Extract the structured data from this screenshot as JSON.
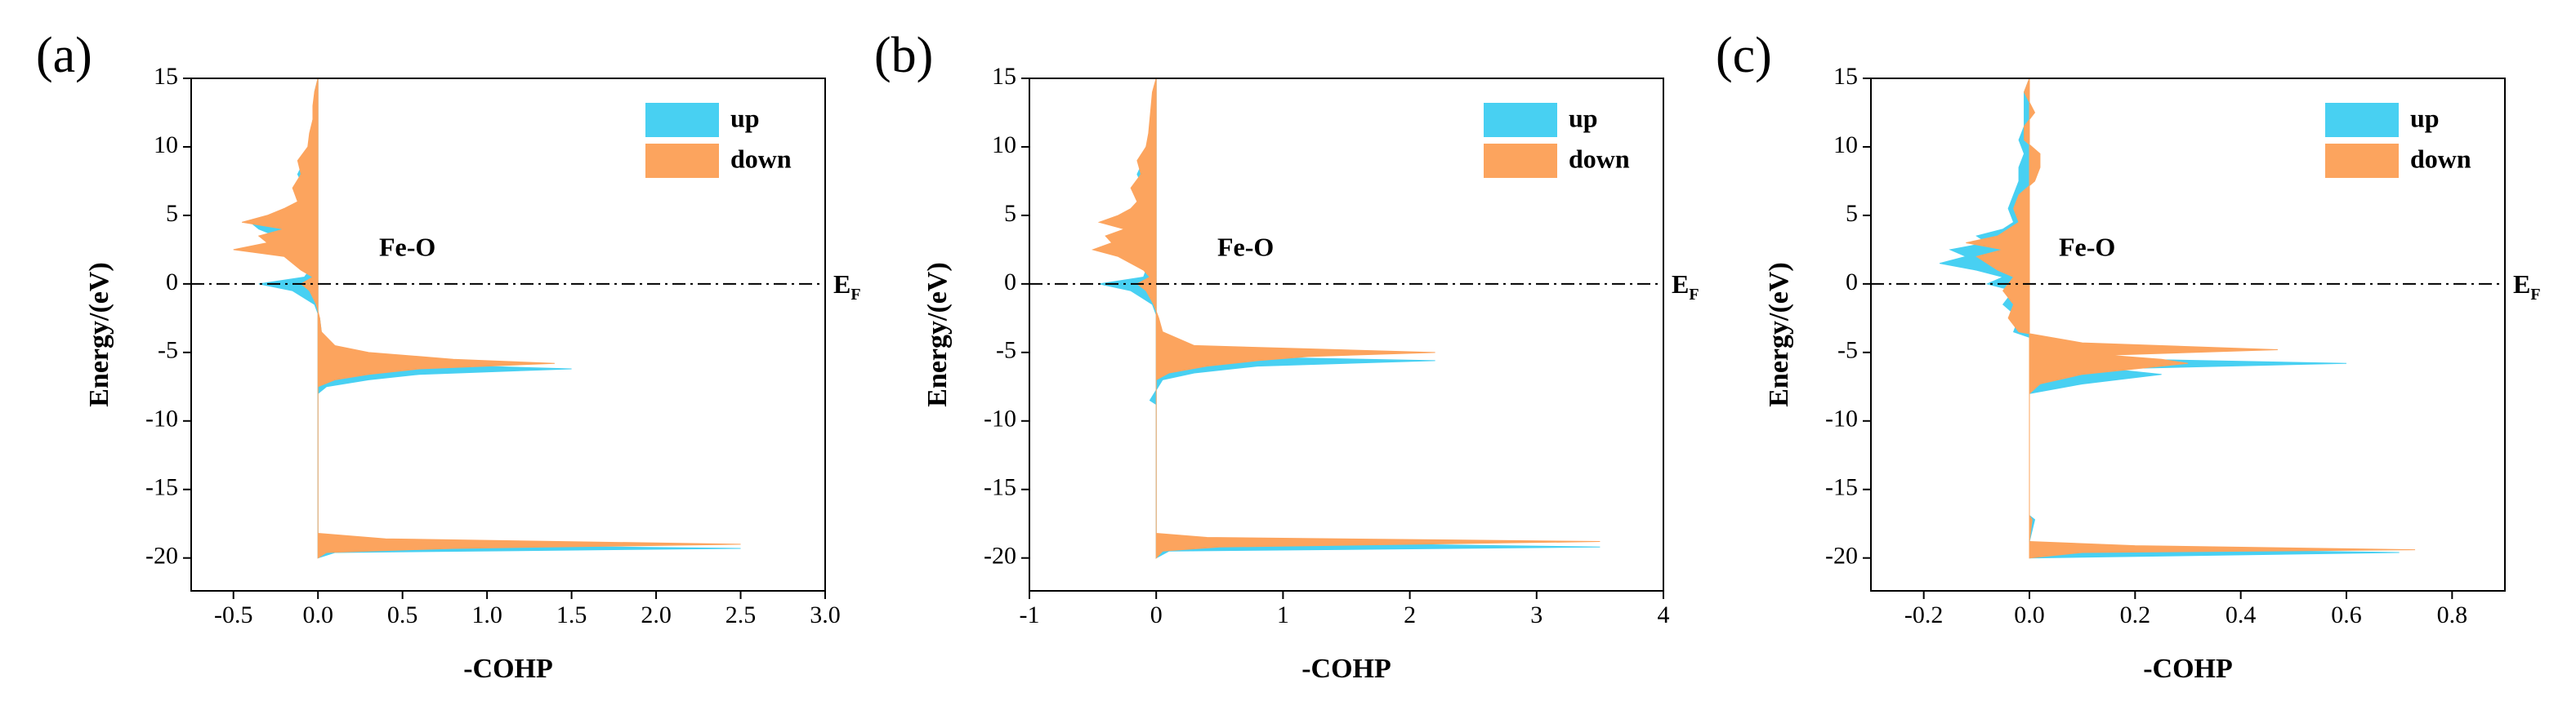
{
  "chart_data": [
    {
      "type": "area",
      "panel_label": "(a)",
      "annotation": "Fe-O",
      "fermi_label": {
        "text": "E",
        "subscript": "F"
      },
      "hline": 0,
      "x_label": "-COHP",
      "y_label": "Energy/(eV)",
      "xlim": [
        -0.75,
        3.0
      ],
      "xticks": [
        -0.5,
        {
          "value": 0,
          "label": "0.0"
        },
        0.5,
        {
          "value": 1,
          "label": "1.0"
        },
        1.5,
        {
          "value": 2,
          "label": "2.0"
        },
        2.5,
        {
          "value": 3,
          "label": "3.0"
        }
      ],
      "ylim": [
        -22.4,
        15
      ],
      "yticks": [
        -20,
        -15,
        -10,
        -5,
        0,
        5,
        10,
        15
      ],
      "y": [
        -20,
        -19.6,
        -19.3,
        -19.0,
        -18.6,
        -18.2,
        -8,
        -7.5,
        -7.0,
        -6.6,
        -6.2,
        -5.8,
        -5.5,
        -5.0,
        -4.5,
        -3.5,
        -2.5,
        -1.5,
        -0.5,
        0,
        0.5,
        1.0,
        2.0,
        2.5,
        3.0,
        3.5,
        4.0,
        4.5,
        5.0,
        5.5,
        6.0,
        7.0,
        8.0,
        9.0,
        10.0,
        11.0,
        12.0,
        13.0,
        14.0,
        15.0
      ],
      "series": [
        {
          "name": "up",
          "color": "#48d0f2",
          "values": [
            0,
            0.1,
            2.5,
            0.3,
            0,
            0,
            0,
            0.05,
            0.3,
            0.6,
            1.5,
            0.4,
            0.2,
            0.1,
            0.05,
            0.02,
            0.01,
            -0.02,
            -0.15,
            -0.35,
            -0.08,
            -0.05,
            -0.1,
            -0.2,
            -0.3,
            -0.25,
            -0.35,
            -0.4,
            -0.2,
            -0.15,
            -0.1,
            -0.08,
            -0.12,
            -0.08,
            -0.05,
            -0.04,
            -0.03,
            -0.02,
            -0.02,
            0
          ]
        },
        {
          "name": "down",
          "color": "#fca45e",
          "values": [
            0,
            0.05,
            0.8,
            2.5,
            0.4,
            0,
            0,
            0,
            0.1,
            0.3,
            0.6,
            1.4,
            0.8,
            0.3,
            0.1,
            0.02,
            0.01,
            -0.01,
            -0.05,
            -0.1,
            -0.03,
            -0.1,
            -0.2,
            -0.5,
            -0.3,
            -0.35,
            -0.2,
            -0.45,
            -0.3,
            -0.2,
            -0.12,
            -0.15,
            -0.1,
            -0.12,
            -0.06,
            -0.05,
            -0.03,
            -0.03,
            -0.02,
            0
          ]
        }
      ]
    },
    {
      "type": "area",
      "panel_label": "(b)",
      "annotation": "Fe-O",
      "fermi_label": {
        "text": "E",
        "subscript": "F"
      },
      "hline": 0,
      "x_label": "-COHP",
      "y_label": "Energy/(eV)",
      "xlim": [
        -1,
        4
      ],
      "xticks": [
        -1,
        0,
        1,
        2,
        3,
        4
      ],
      "ylim": [
        -22.4,
        15
      ],
      "yticks": [
        -20,
        -15,
        -10,
        -5,
        0,
        5,
        10,
        15
      ],
      "y": [
        -20,
        -19.5,
        -19.2,
        -18.8,
        -18.5,
        -18.2,
        -8.8,
        -8.5,
        -7.0,
        -6.5,
        -6.0,
        -5.6,
        -5.3,
        -5.0,
        -4.5,
        -3.5,
        -2.5,
        -1.5,
        -0.5,
        0,
        0.5,
        1.0,
        2.0,
        2.5,
        3.0,
        3.5,
        4.0,
        4.5,
        5.0,
        5.5,
        6.0,
        7.0,
        8.0,
        9.0,
        10.0,
        11.0,
        12.0,
        13.0,
        14.0,
        15.0
      ],
      "series": [
        {
          "name": "up",
          "color": "#48d0f2",
          "values": [
            0,
            0.1,
            3.5,
            0.3,
            0,
            0,
            0,
            -0.05,
            0.05,
            0.3,
            0.8,
            2.2,
            0.5,
            0.2,
            0.08,
            0.03,
            0.01,
            -0.03,
            -0.2,
            -0.45,
            -0.1,
            -0.08,
            -0.2,
            -0.3,
            -0.25,
            -0.3,
            -0.2,
            -0.35,
            -0.2,
            -0.15,
            -0.1,
            -0.1,
            -0.15,
            -0.1,
            -0.08,
            -0.05,
            -0.04,
            -0.03,
            -0.02,
            0
          ]
        },
        {
          "name": "down",
          "color": "#fca45e",
          "values": [
            0,
            0.05,
            0.5,
            3.5,
            0.4,
            0,
            0,
            0,
            0,
            0.1,
            0.4,
            0.8,
            1.2,
            2.2,
            0.3,
            0.05,
            0.02,
            -0.02,
            -0.08,
            -0.15,
            -0.05,
            -0.1,
            -0.3,
            -0.5,
            -0.35,
            -0.4,
            -0.25,
            -0.45,
            -0.3,
            -0.2,
            -0.15,
            -0.2,
            -0.12,
            -0.15,
            -0.08,
            -0.06,
            -0.05,
            -0.04,
            -0.03,
            0
          ]
        }
      ]
    },
    {
      "type": "area",
      "panel_label": "(c)",
      "annotation": "Fe-O",
      "fermi_label": {
        "text": "E",
        "subscript": "F"
      },
      "hline": 0,
      "x_label": "-COHP",
      "y_label": "Energy/(eV)",
      "xlim": [
        -0.3,
        0.9
      ],
      "xticks": [
        -0.2,
        {
          "value": 0,
          "label": "0.0"
        },
        0.2,
        0.4,
        0.6,
        0.8
      ],
      "ylim": [
        -22.4,
        15
      ],
      "yticks": [
        -20,
        -15,
        -10,
        -5,
        0,
        5,
        10,
        15
      ],
      "y": [
        -20,
        -19.6,
        -19.4,
        -19.1,
        -18.8,
        -17.2,
        -16.9,
        -8,
        -7.3,
        -6.6,
        -6.2,
        -5.8,
        -5.5,
        -5.2,
        -4.8,
        -4.3,
        -3.5,
        -2.5,
        -1.5,
        -0.5,
        0,
        0.5,
        1.0,
        1.5,
        2.0,
        2.5,
        3.0,
        3.5,
        4.0,
        4.5,
        5.5,
        6.5,
        7.5,
        8.5,
        9.5,
        10.5,
        11.5,
        12.5,
        14.0,
        15.0
      ],
      "series": [
        {
          "name": "up",
          "color": "#48d0f2",
          "values": [
            0,
            0.7,
            0.3,
            0.05,
            0,
            0.01,
            0,
            0,
            0.1,
            0.25,
            0.15,
            0.6,
            0.2,
            0.1,
            0.05,
            0.03,
            -0.03,
            -0.02,
            -0.05,
            -0.03,
            -0.08,
            -0.05,
            -0.1,
            -0.17,
            -0.12,
            -0.15,
            -0.08,
            -0.1,
            -0.05,
            -0.03,
            -0.04,
            -0.03,
            -0.02,
            -0.02,
            -0.01,
            -0.02,
            -0.01,
            -0.01,
            -0.01,
            0
          ]
        },
        {
          "name": "down",
          "color": "#fca45e",
          "values": [
            0,
            0.1,
            0.73,
            0.2,
            0,
            0.005,
            0,
            0,
            0.02,
            0.1,
            0.2,
            0.3,
            0.25,
            0.15,
            0.47,
            0.1,
            -0.02,
            -0.04,
            -0.03,
            -0.05,
            -0.04,
            -0.03,
            -0.06,
            -0.08,
            -0.1,
            -0.05,
            -0.12,
            -0.06,
            -0.04,
            -0.02,
            -0.03,
            -0.02,
            0.01,
            0.02,
            0.02,
            -0.01,
            -0.01,
            0.01,
            -0.01,
            0
          ]
        }
      ]
    }
  ]
}
